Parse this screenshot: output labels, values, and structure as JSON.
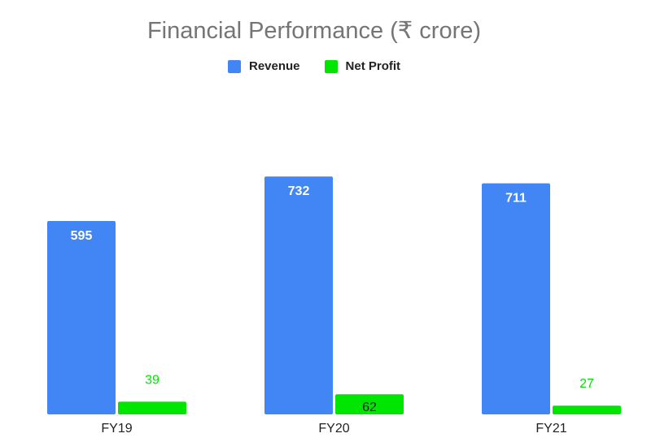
{
  "chart_data": {
    "type": "bar",
    "title": "Financial Performance (₹ crore)",
    "categories": [
      "FY19",
      "FY20",
      "FY21"
    ],
    "series": [
      {
        "name": "Revenue",
        "values": [
          595,
          732,
          711
        ],
        "color": "#4285f4",
        "label_color": "#ffffff",
        "label_position": "inside-top"
      },
      {
        "name": "Net Profit",
        "values": [
          39,
          62,
          27
        ],
        "color": "#00e600",
        "label_color": "#00e600",
        "label_position": "outside-top"
      }
    ],
    "ylim": [
      0,
      775
    ],
    "grid": false,
    "legend": "top-center"
  }
}
